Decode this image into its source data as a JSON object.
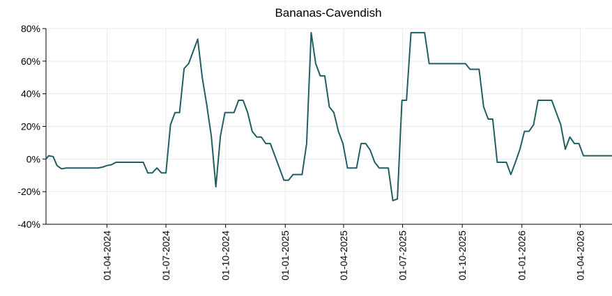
{
  "chart_data": {
    "type": "line",
    "title": "Bananas-Cavendish",
    "xlabel": "",
    "ylabel": "",
    "ylim": [
      -40,
      80
    ],
    "y_ticks": [
      -40,
      -20,
      0,
      20,
      40,
      60,
      80
    ],
    "y_tick_labels": [
      "-40%",
      "-20%",
      "0%",
      "20%",
      "40%",
      "60%",
      "80%"
    ],
    "x_range": [
      "2023-12-29",
      "2026-05-20"
    ],
    "x_ticks": [
      "2024-04-01",
      "2024-07-01",
      "2024-10-01",
      "2025-01-01",
      "2025-04-01",
      "2025-07-01",
      "2025-10-01",
      "2026-01-01",
      "2026-04-01"
    ],
    "x_tick_labels": [
      "01-04-2024",
      "01-07-2024",
      "01-10-2024",
      "01-01-2025",
      "01-04-2025",
      "01-07-2025",
      "01-10-2025",
      "01-01-2026",
      "01-04-2026"
    ],
    "grid": true,
    "color": "#205e62",
    "series": [
      {
        "x": [
          "2023-12-29",
          "2024-01-02",
          "2024-01-09",
          "2024-01-15",
          "2024-01-22",
          "2024-01-29",
          "2024-02-05",
          "2024-02-12",
          "2024-02-19",
          "2024-02-26",
          "2024-03-04",
          "2024-03-11",
          "2024-03-18",
          "2024-03-25",
          "2024-04-01",
          "2024-04-08",
          "2024-04-15",
          "2024-04-22",
          "2024-04-29",
          "2024-05-06",
          "2024-05-13",
          "2024-05-20",
          "2024-05-27",
          "2024-06-03",
          "2024-06-10",
          "2024-06-17",
          "2024-06-24",
          "2024-07-01",
          "2024-07-08",
          "2024-07-15",
          "2024-07-22",
          "2024-07-29",
          "2024-08-05",
          "2024-08-12",
          "2024-08-19",
          "2024-08-26",
          "2024-09-02",
          "2024-09-09",
          "2024-09-16",
          "2024-09-23",
          "2024-09-30",
          "2024-10-07",
          "2024-10-14",
          "2024-10-21",
          "2024-10-28",
          "2024-11-04",
          "2024-11-11",
          "2024-11-18",
          "2024-11-25",
          "2024-12-02",
          "2024-12-09",
          "2024-12-16",
          "2024-12-23",
          "2024-12-30",
          "2025-01-06",
          "2025-01-13",
          "2025-01-20",
          "2025-01-27",
          "2025-02-03",
          "2025-02-10",
          "2025-02-17",
          "2025-02-24",
          "2025-03-03",
          "2025-03-10",
          "2025-03-17",
          "2025-03-24",
          "2025-03-31",
          "2025-04-07",
          "2025-04-14",
          "2025-04-21",
          "2025-04-28",
          "2025-05-05",
          "2025-05-12",
          "2025-05-19",
          "2025-05-26",
          "2025-06-02",
          "2025-06-09",
          "2025-06-16",
          "2025-06-23",
          "2025-06-30",
          "2025-07-07",
          "2025-07-14",
          "2025-07-21",
          "2025-07-28",
          "2025-08-04",
          "2025-08-11",
          "2025-08-18",
          "2025-08-25",
          "2025-09-01",
          "2025-09-08",
          "2025-09-15",
          "2025-09-22",
          "2025-09-29",
          "2025-10-06",
          "2025-10-13",
          "2025-10-20",
          "2025-10-27",
          "2025-11-03",
          "2025-11-10",
          "2025-11-17",
          "2025-11-24",
          "2025-12-01",
          "2025-12-08",
          "2025-12-15",
          "2025-12-22",
          "2025-12-29",
          "2026-01-05",
          "2026-01-12",
          "2026-01-19",
          "2026-01-26",
          "2026-02-02",
          "2026-02-09",
          "2026-02-16",
          "2026-02-23",
          "2026-03-02",
          "2026-03-09",
          "2026-03-16",
          "2026-03-23",
          "2026-03-30",
          "2026-04-06",
          "2026-04-13",
          "2026-04-20",
          "2026-04-27",
          "2026-05-04",
          "2026-05-11",
          "2026-05-20"
        ],
        "values": [
          0,
          2,
          1.5,
          -4,
          -6,
          -5.5,
          -5.5,
          -5.5,
          -5.5,
          -5.5,
          -5.5,
          -5.5,
          -5.5,
          -5,
          -4,
          -3.5,
          -2,
          -2,
          -2,
          -2,
          -2,
          -2,
          -2,
          -8.5,
          -8.5,
          -5.5,
          -8.5,
          -8.5,
          21,
          28.5,
          28.5,
          55.5,
          58.5,
          66,
          73.5,
          50,
          33,
          14,
          -17,
          14,
          28.5,
          28.5,
          28.5,
          36,
          36,
          28.5,
          17,
          13.5,
          13.5,
          9.5,
          9.5,
          2,
          -5.5,
          -13,
          -13,
          -9.5,
          -9.5,
          -9.5,
          9.5,
          77.5,
          58.5,
          51,
          51,
          32,
          28.5,
          17,
          9.5,
          -5.5,
          -5.5,
          -5.5,
          9.5,
          9.5,
          5.5,
          -2,
          -5.5,
          -5.5,
          -5.5,
          -25.5,
          -24.5,
          36,
          36,
          77.5,
          77.5,
          77.5,
          77.5,
          58.5,
          58.5,
          58.5,
          58.5,
          58.5,
          58.5,
          58.5,
          58.5,
          58.5,
          55,
          55,
          55,
          32,
          24.5,
          24.5,
          -2,
          -2,
          -2,
          -9.5,
          -2,
          6,
          17,
          17,
          21,
          36,
          36,
          36,
          36,
          28.5,
          21,
          6,
          13.5,
          9.5,
          9.5,
          2,
          2,
          2,
          2,
          2,
          2,
          2
        ]
      }
    ]
  }
}
